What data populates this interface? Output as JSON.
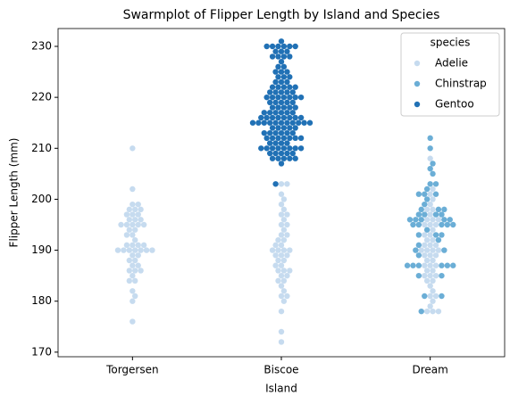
{
  "chart_data": {
    "type": "swarm",
    "title": "Swarmplot of Flipper Length by Island and Species",
    "x_label": "Island",
    "y_label": "Flipper Length (mm)",
    "categories": [
      "Torgersen",
      "Biscoe",
      "Dream"
    ],
    "legend_title": "species",
    "legend_position": "upper right",
    "ylim": [
      169.1,
      233.5
    ],
    "yticks": [
      170,
      180,
      190,
      200,
      210,
      220,
      230
    ],
    "series": [
      {
        "name": "Adelie",
        "color": "#c6dbef",
        "values": [
          [
            176,
            180,
            181,
            182,
            184,
            184,
            185,
            186,
            186,
            186,
            187,
            187,
            188,
            188,
            189,
            189,
            190,
            190,
            190,
            190,
            190,
            190,
            190,
            191,
            191,
            191,
            191,
            192,
            193,
            193,
            194,
            194,
            195,
            195,
            195,
            195,
            195,
            196,
            196,
            196,
            197,
            197,
            197,
            198,
            198,
            198,
            199,
            199,
            202,
            210
          ],
          [
            172,
            174,
            178,
            180,
            181,
            181,
            182,
            183,
            184,
            184,
            185,
            185,
            186,
            186,
            186,
            187,
            187,
            188,
            188,
            189,
            189,
            189,
            190,
            190,
            190,
            190,
            191,
            191,
            192,
            192,
            193,
            193,
            194,
            195,
            195,
            196,
            197,
            197,
            198,
            199,
            200,
            201,
            203,
            203
          ],
          [
            178,
            178,
            178,
            179,
            180,
            181,
            181,
            182,
            183,
            184,
            184,
            185,
            185,
            185,
            186,
            186,
            187,
            187,
            187,
            188,
            188,
            189,
            189,
            189,
            190,
            190,
            190,
            190,
            191,
            191,
            191,
            192,
            192,
            193,
            193,
            194,
            195,
            195,
            195,
            196,
            196,
            196,
            197,
            198,
            198,
            199,
            200,
            201,
            202,
            208
          ]
        ]
      },
      {
        "name": "Chinstrap",
        "color": "#6baed6",
        "values": [
          [],
          [],
          [
            178,
            181,
            181,
            185,
            185,
            187,
            187,
            187,
            187,
            187,
            187,
            189,
            190,
            190,
            191,
            192,
            193,
            193,
            193,
            194,
            195,
            195,
            195,
            195,
            195,
            196,
            196,
            196,
            196,
            196,
            197,
            197,
            197,
            197,
            198,
            198,
            198,
            199,
            200,
            201,
            201,
            201,
            202,
            203,
            203,
            205,
            206,
            207,
            210,
            212
          ]
        ]
      },
      {
        "name": "Gentoo",
        "color": "#2171b5",
        "values": [
          [],
          [
            203,
            207,
            208,
            208,
            208,
            208,
            208,
            209,
            209,
            209,
            209,
            209,
            210,
            210,
            210,
            210,
            210,
            210,
            210,
            210,
            211,
            211,
            211,
            211,
            212,
            212,
            212,
            212,
            212,
            212,
            212,
            213,
            213,
            213,
            213,
            213,
            213,
            214,
            214,
            214,
            214,
            214,
            215,
            215,
            215,
            215,
            215,
            215,
            215,
            215,
            215,
            215,
            215,
            216,
            216,
            216,
            216,
            216,
            216,
            216,
            216,
            217,
            217,
            217,
            217,
            217,
            217,
            218,
            218,
            218,
            218,
            218,
            219,
            219,
            219,
            219,
            219,
            220,
            220,
            220,
            220,
            220,
            220,
            220,
            221,
            221,
            221,
            221,
            221,
            222,
            222,
            222,
            222,
            222,
            223,
            223,
            223,
            224,
            224,
            224,
            225,
            225,
            225,
            226,
            226,
            227,
            228,
            228,
            228,
            228,
            229,
            229,
            229,
            230,
            230,
            230,
            230,
            230,
            230,
            231
          ],
          []
        ]
      }
    ]
  }
}
